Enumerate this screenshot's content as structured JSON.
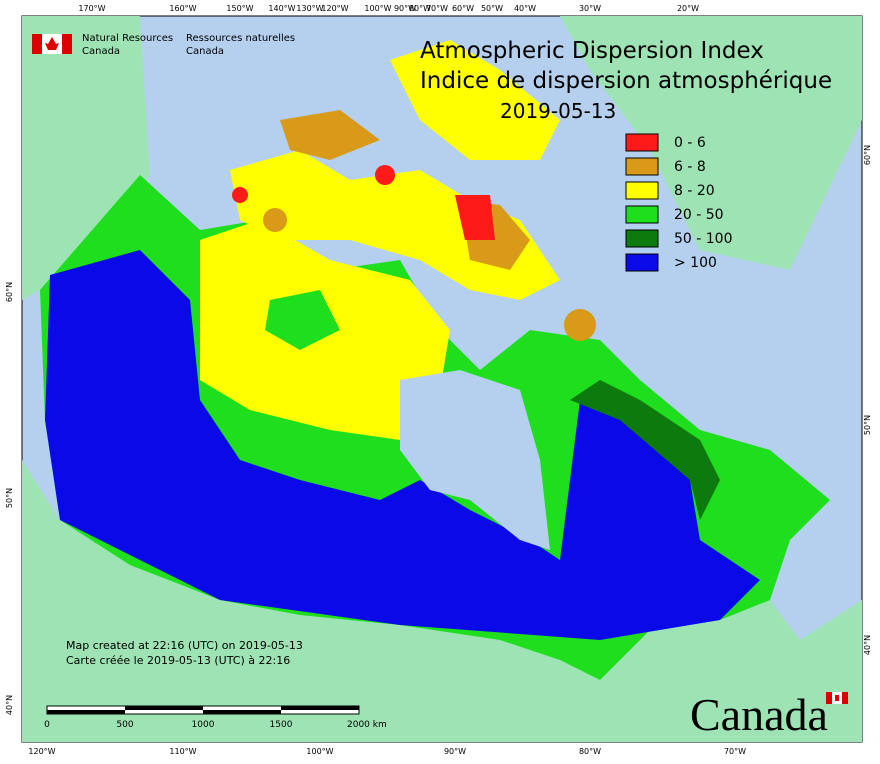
{
  "header": {
    "org_en_1": "Natural Resources",
    "org_en_2": "Canada",
    "org_fr_1": "Ressources naturelles",
    "org_fr_2": "Canada"
  },
  "title": {
    "line1": "Atmospheric Dispersion Index",
    "line2": "Indice de dispersion atmosphérique",
    "date": "2019-05-13"
  },
  "legend": [
    {
      "label": "0 - 6",
      "color": "#ff1a1a"
    },
    {
      "label": "6 - 8",
      "color": "#d89a18"
    },
    {
      "label": "8 - 20",
      "color": "#ffff00"
    },
    {
      "label": "20 - 50",
      "color": "#1ede1e"
    },
    {
      "label": "50 - 100",
      "color": "#0c7a0c"
    },
    {
      "label": "> 100",
      "color": "#0a0ae8"
    }
  ],
  "top_labels": [
    "170°W",
    "160°W",
    "150°W",
    "140°W",
    "130°W",
    "120°W",
    "100°W",
    "90°W",
    "80°W",
    "70°W",
    "60°W",
    "50°W",
    "40°W",
    "30°W",
    "20°W"
  ],
  "bottom_labels": [
    "120°W",
    "110°W",
    "100°W",
    "90°W",
    "80°W",
    "70°W"
  ],
  "left_labels": [
    "60°N",
    "50°N",
    "40°N"
  ],
  "right_labels": [
    "60°N",
    "50°N",
    "40°N"
  ],
  "notes": {
    "line1": "Map created at 22:16 (UTC) on 2019-05-13",
    "line2": "Carte créée le 2019-05-13 (UTC) à 22:16"
  },
  "scale_labels": [
    "0",
    "500",
    "1000",
    "1500",
    "2000 km"
  ],
  "wordmark": "Canada"
}
